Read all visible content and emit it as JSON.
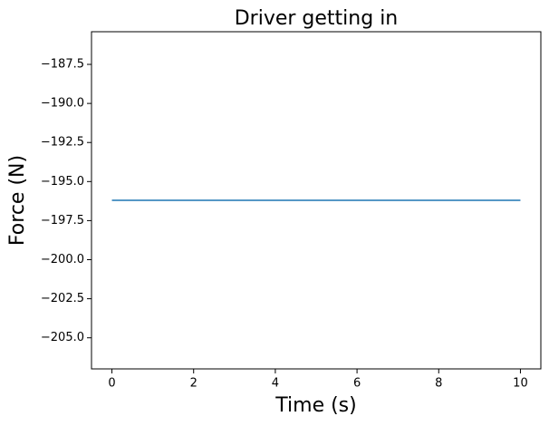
{
  "chart_data": {
    "type": "line",
    "title": "Driver getting in",
    "x_label": "Time (s)",
    "y_label": "Force (N)",
    "x": [
      0,
      10
    ],
    "series": [
      {
        "name": "Force",
        "color": "#1f77b4",
        "values": [
          -196.2,
          -196.2
        ]
      }
    ],
    "xlim": [
      -0.5,
      10.5
    ],
    "xticks": [
      0,
      2,
      4,
      6,
      8,
      10
    ],
    "ylim": [
      -206.99,
      -185.41
    ],
    "yticks": [
      {
        "value": -205,
        "label": "−205.0"
      },
      {
        "value": -202.5,
        "label": "−202.5"
      },
      {
        "value": -200,
        "label": "−200.0"
      },
      {
        "value": -197.5,
        "label": "−197.5"
      },
      {
        "value": -195,
        "label": "−195.0"
      },
      {
        "value": -192.5,
        "label": "−192.5"
      },
      {
        "value": -190,
        "label": "−190.0"
      },
      {
        "value": -187.5,
        "label": "−187.5"
      }
    ],
    "grid": false
  }
}
